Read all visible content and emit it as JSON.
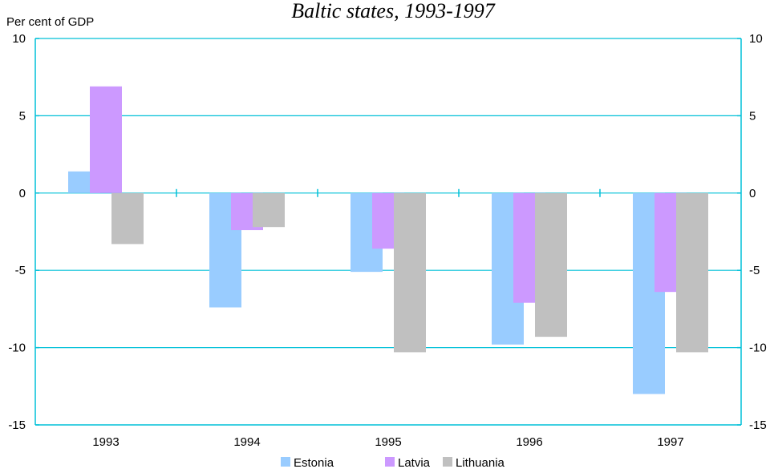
{
  "chart_data": {
    "type": "bar",
    "title": "Baltic states, 1993-1997",
    "ylabel": "Per cent of GDP",
    "xlabel": "",
    "categories": [
      "1993",
      "1994",
      "1995",
      "1996",
      "1997"
    ],
    "ylim": [
      -15,
      10
    ],
    "yticks": [
      10,
      5,
      0,
      -5,
      -10,
      -15
    ],
    "grid": true,
    "legend_position": "bottom-center",
    "series": [
      {
        "name": "Estonia",
        "color": "#99ccff",
        "values": [
          1.4,
          -7.4,
          -5.1,
          -9.8,
          -13.0
        ]
      },
      {
        "name": "Latvia",
        "color": "#cc99ff",
        "values": [
          6.9,
          -2.4,
          -3.6,
          -7.1,
          -6.4
        ]
      },
      {
        "name": "Lithuania",
        "color": "#c0c0c0",
        "values": [
          -3.3,
          -2.2,
          -10.3,
          -9.3,
          -10.3
        ]
      }
    ]
  }
}
